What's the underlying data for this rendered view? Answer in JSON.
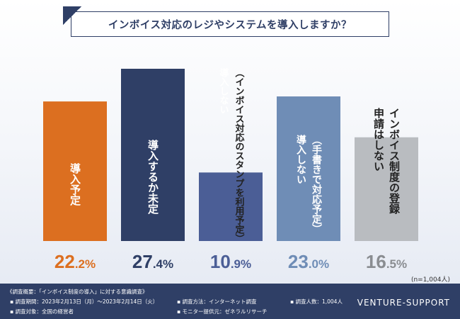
{
  "title": "インボイス対応のレジやシステムを導入しますか？",
  "chart_data": {
    "type": "bar",
    "categories": [
      "導入予定",
      "導入するか未定",
      "（インボイス対応のスタンプを利用予定）導入しない",
      "（手書きで対応予定）導入しない",
      "インボイス制度の登録申請はしない"
    ],
    "values": [
      22.2,
      27.4,
      10.9,
      23.0,
      16.5
    ],
    "value_labels": [
      "22.2%",
      "27.4%",
      "10.9%",
      "23.0%",
      "16.5%"
    ],
    "colors": [
      "#dc6f20",
      "#2f3f66",
      "#4b5e96",
      "#6f8db6",
      "#b9bcc0"
    ],
    "value_colors": [
      "#dc6f20",
      "#2f3f66",
      "#4b5e96",
      "#6f8db6",
      "#8a8d91"
    ],
    "ylim": [
      0,
      27.4
    ],
    "grid": false,
    "legend": "none"
  },
  "note": "(n=1,004人)",
  "footer": {
    "overview": "《調査概要：「インボイス制度の導入」に対する意識調査》",
    "period": "▪ 調査期間：2023年2月13日（月）～2023年2月14日（火）",
    "target": "▪ 調査対象：全国の経営者",
    "method": "▪ 調査方法：インターネット調査",
    "provider": "▪ モニター提供元：ゼネラルリサーチ",
    "count": "▪ 調査人数：1,004人",
    "brand": "VENTURE-SUPPORT"
  }
}
